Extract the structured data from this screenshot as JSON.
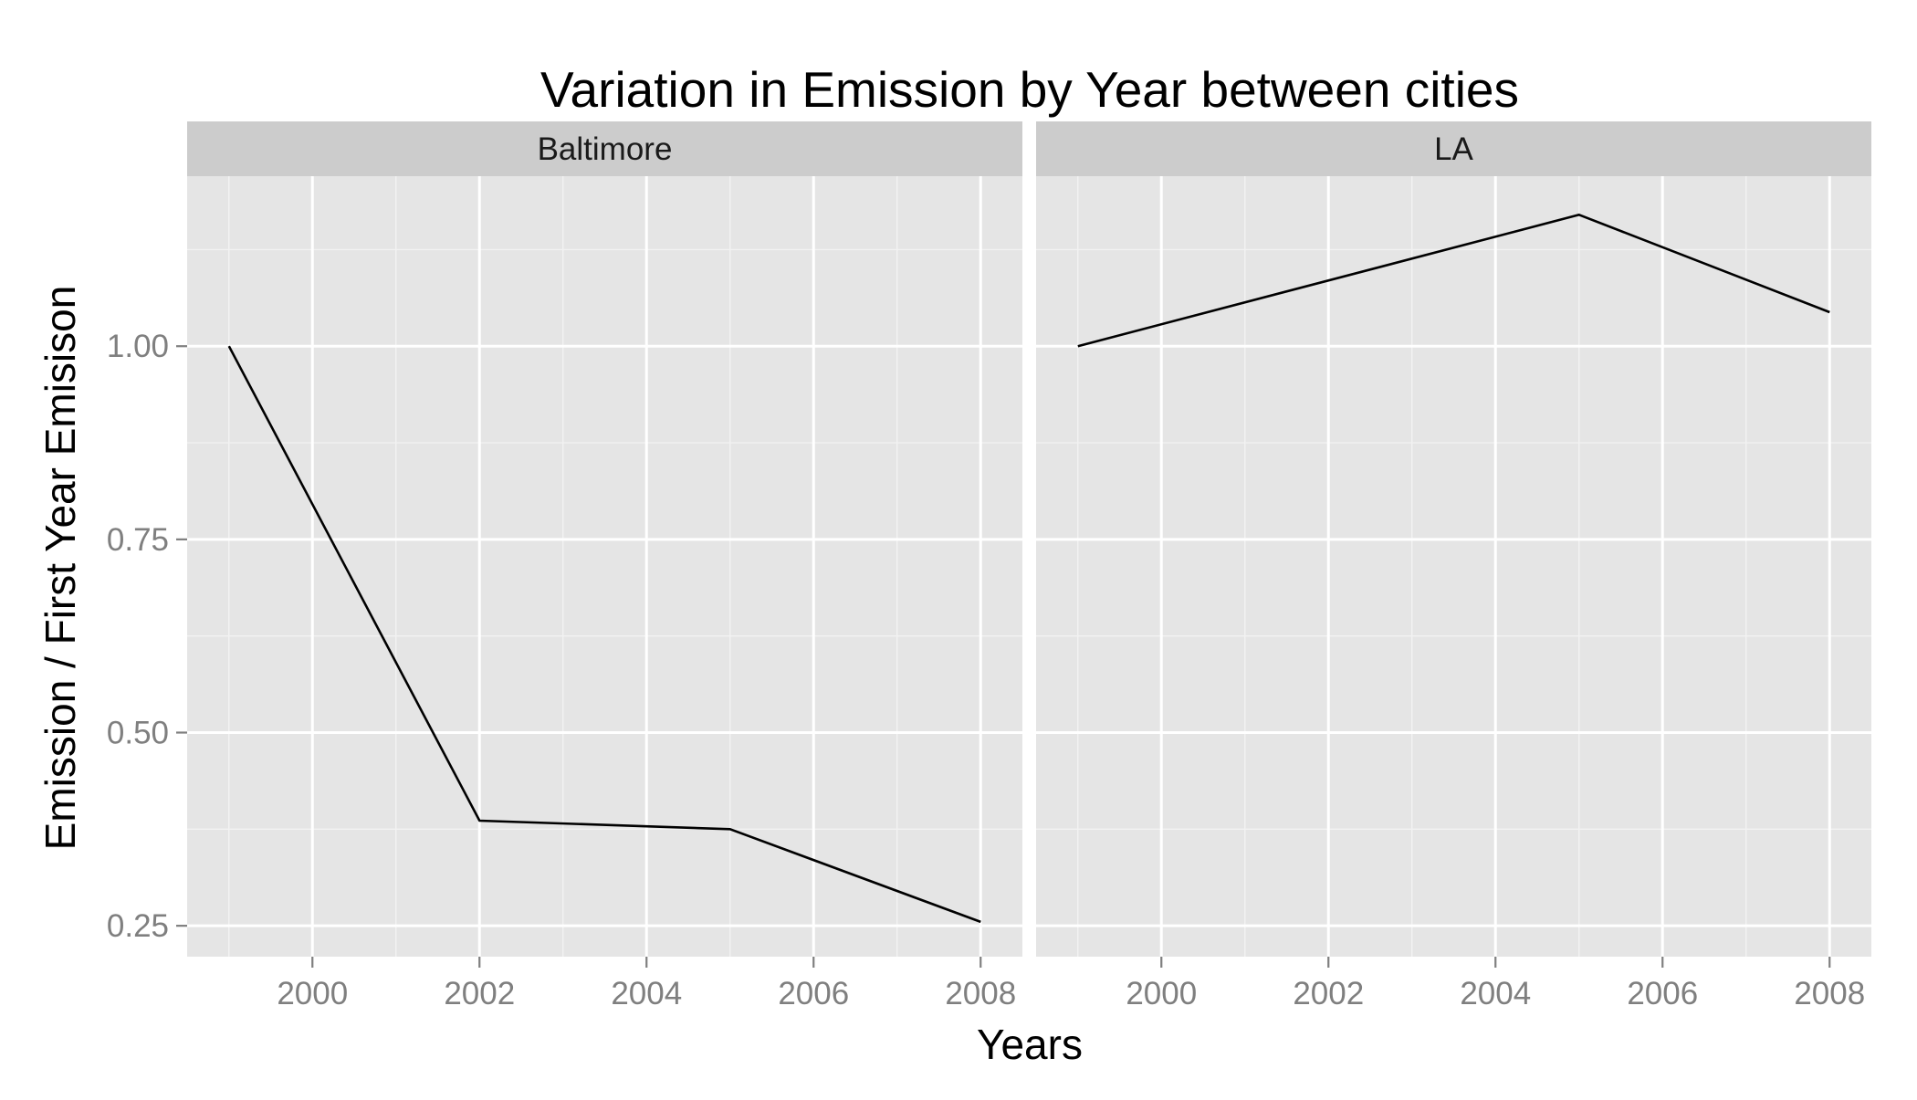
{
  "chart_data": {
    "type": "line",
    "title": "Variation in Emission by Year between cities",
    "xlabel": "Years",
    "ylabel": "Emission / First Year Emisison",
    "xlim": [
      1998.5,
      2008.5
    ],
    "ylim": [
      0.21,
      1.22
    ],
    "x_ticks": [
      2000,
      2002,
      2004,
      2006,
      2008
    ],
    "y_ticks": [
      0.25,
      0.5,
      0.75,
      1.0
    ],
    "y_tick_labels": [
      "0.25",
      "0.50",
      "0.75",
      "1.00"
    ],
    "grid": true,
    "facets": [
      {
        "name": "Baltimore",
        "x": [
          1999,
          2002,
          2005,
          2008
        ],
        "y": [
          1.0,
          0.386,
          0.375,
          0.255
        ]
      },
      {
        "name": "LA",
        "x": [
          1999,
          2005,
          2008
        ],
        "y": [
          1.0,
          1.17,
          1.044
        ]
      }
    ],
    "colors": {
      "panel_background": "#e5e5e5",
      "strip_background": "#cccccc",
      "grid": "#ffffff",
      "line": "#000000",
      "tick_label": "#7f7f7f"
    }
  }
}
